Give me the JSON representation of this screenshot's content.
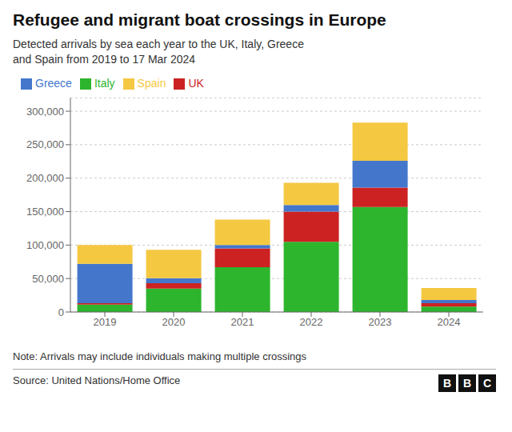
{
  "chart_data": {
    "type": "bar",
    "title": "Refugee and migrant boat crossings in Europe",
    "subtitle": "Detected arrivals by sea each year to the UK, Italy, Greece\nand Spain from 2019 to 17 Mar 2024",
    "annotations": [
      "Note: Arrivals may include individuals making multiple crossings",
      "Source: United Nations/Home Office",
      "BBC"
    ],
    "categories": [
      "2019",
      "2020",
      "2021",
      "2022",
      "2023",
      "2024"
    ],
    "series": [
      {
        "name": "Italy",
        "color": "#2db52d",
        "values": [
          11000,
          35000,
          67000,
          105000,
          157000,
          8000
        ]
      },
      {
        "name": "UK",
        "color": "#cc2222",
        "values": [
          2000,
          8000,
          28000,
          45000,
          29000,
          5000
        ]
      },
      {
        "name": "Greece",
        "color": "#4477cc",
        "values": [
          59000,
          7500,
          5000,
          10000,
          40000,
          5000
        ]
      },
      {
        "name": "Spain",
        "color": "#f5c842",
        "values": [
          28000,
          42500,
          38000,
          33000,
          57000,
          18000
        ]
      }
    ],
    "stacked": true,
    "ylim": [
      0,
      320000
    ],
    "yticks": [
      0,
      {
        "value": 50000,
        "label": "50,000"
      },
      {
        "value": 100000,
        "label": "100,000"
      },
      {
        "value": 150000,
        "label": "150,000"
      },
      {
        "value": 200000,
        "label": "200,000"
      },
      {
        "value": 250000,
        "label": "250,000"
      },
      {
        "value": 300000,
        "label": "300,000"
      }
    ],
    "grid": true,
    "legend": "top"
  }
}
